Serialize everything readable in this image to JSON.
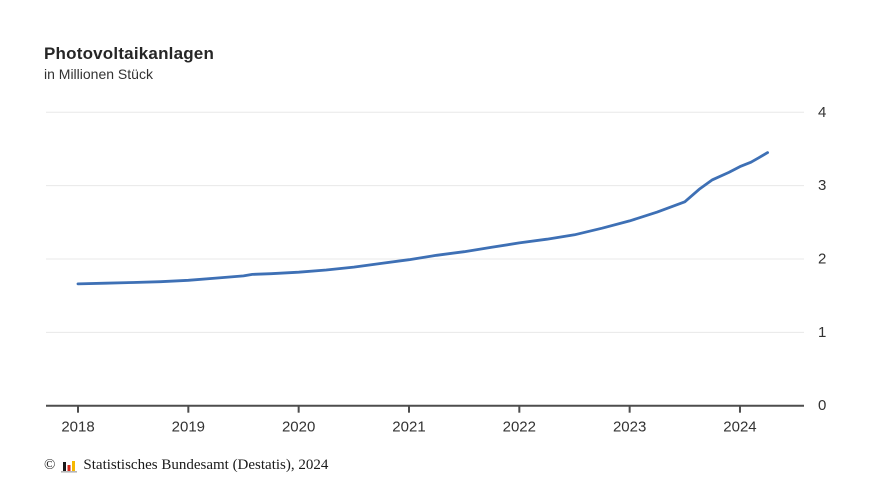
{
  "header": {
    "title": "Photovoltaikanlagen",
    "subtitle": "in Millionen Stück"
  },
  "footer": {
    "copyright": "©",
    "source": "Statistisches Bundesamt (Destatis), 2024",
    "logo": {
      "bar_black": "#1a1a1a",
      "bar_red": "#d52b1e",
      "bar_gold": "#f6b800",
      "baseline": "#b5b5b5"
    }
  },
  "colors": {
    "line": "#3e70b5",
    "grid": "#e8e8e8",
    "axis": "#4d4d4d",
    "tick_text": "#333333",
    "background": "#ffffff"
  },
  "chart_data": {
    "type": "line",
    "title": "Photovoltaikanlagen",
    "subtitle": "in Millionen Stück",
    "ylabel": "in Millionen Stück",
    "xlabel": "",
    "grid": "horizontal",
    "legend": "none",
    "y_axis_side": "right",
    "xlim": [
      2017.7,
      2024.6
    ],
    "ylim": [
      0,
      4
    ],
    "xticks": [
      2018,
      2019,
      2020,
      2021,
      2022,
      2023,
      2024
    ],
    "yticks": [
      0,
      1,
      2,
      3,
      4
    ],
    "series": [
      {
        "name": "Photovoltaikanlagen",
        "x": [
          2018.0,
          2018.25,
          2018.5,
          2018.75,
          2019.0,
          2019.25,
          2019.5,
          2019.58,
          2019.75,
          2020.0,
          2020.25,
          2020.5,
          2020.75,
          2021.0,
          2021.25,
          2021.5,
          2021.75,
          2022.0,
          2022.25,
          2022.5,
          2022.75,
          2023.0,
          2023.25,
          2023.5,
          2023.63,
          2023.75,
          2023.9,
          2024.0,
          2024.1,
          2024.17,
          2024.25
        ],
        "values": [
          1.66,
          1.67,
          1.68,
          1.69,
          1.71,
          1.74,
          1.77,
          1.79,
          1.8,
          1.82,
          1.85,
          1.89,
          1.94,
          1.99,
          2.05,
          2.1,
          2.16,
          2.22,
          2.27,
          2.33,
          2.42,
          2.52,
          2.64,
          2.78,
          2.95,
          3.08,
          3.18,
          3.26,
          3.32,
          3.38,
          3.45
        ]
      }
    ]
  }
}
